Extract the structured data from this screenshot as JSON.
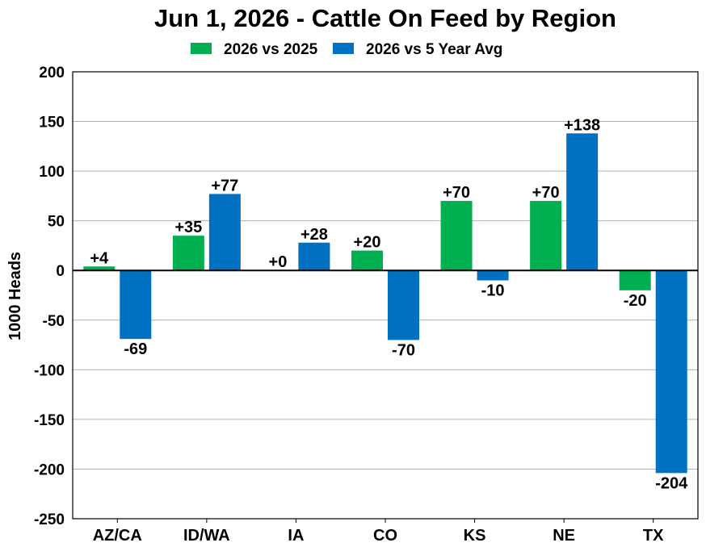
{
  "chart_data": {
    "type": "bar",
    "title": "Jun 1, 2026 - Cattle On Feed by Region",
    "xlabel": "",
    "ylabel": "1000 Heads",
    "ylim": [
      -250,
      200
    ],
    "yticks": [
      200,
      150,
      100,
      50,
      0,
      -50,
      -100,
      -150,
      -200,
      -250
    ],
    "categories": [
      "AZ/CA",
      "ID/WA",
      "IA",
      "CO",
      "KS",
      "NE",
      "TX"
    ],
    "series": [
      {
        "name": "2026 vs 2025",
        "color": "#00b050",
        "values": [
          4,
          35,
          0,
          20,
          70,
          70,
          -20
        ],
        "labels": [
          "+4",
          "+35",
          "+0",
          "+20",
          "+70",
          "+70",
          "-20"
        ]
      },
      {
        "name": "2026 vs 5 Year Avg",
        "color": "#0070c0",
        "values": [
          -69,
          77,
          28,
          -70,
          -10,
          138,
          -204
        ],
        "labels": [
          "-69",
          "+77",
          "+28",
          "-70",
          "-10",
          "+138",
          "-204"
        ]
      }
    ],
    "grid": true,
    "legend_position": "top-center"
  }
}
